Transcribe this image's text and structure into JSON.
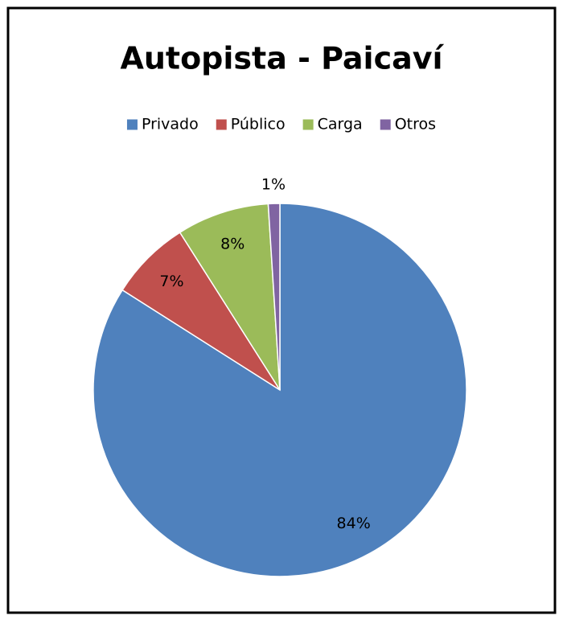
{
  "chart_data": {
    "type": "pie",
    "title": "Autopista - Paicaví",
    "categories": [
      "Privado",
      "Público",
      "Carga",
      "Otros"
    ],
    "values": [
      84,
      7,
      8,
      1
    ],
    "value_labels": [
      "84%",
      "7%",
      "8%",
      "1%"
    ],
    "colors": [
      "#4f81bd",
      "#c0504d",
      "#9bbb59",
      "#8064a2"
    ],
    "legend": "top"
  }
}
